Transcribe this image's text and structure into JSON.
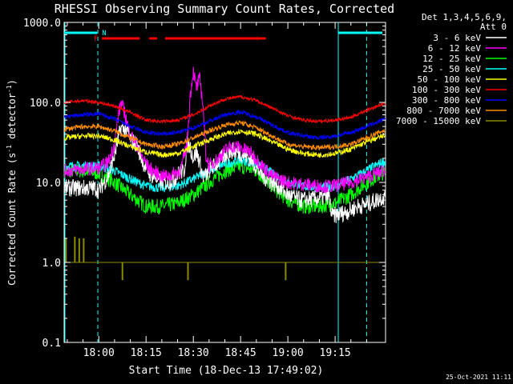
{
  "chart_data": {
    "type": "line",
    "title": "RHESSI Observing Summary Count Rates, Corrected",
    "xlabel": "Start Time (18-Dec-13 17:49:02)",
    "ylabel_main": "Corrected Count Rate (s",
    "ylabel_sup1": "-1",
    "ylabel_mid": " detector",
    "ylabel_sup2": "-1",
    "ylabel_end": ")",
    "yscale": "log",
    "ylim": [
      0.1,
      1000
    ],
    "xlim_min": [
      -11,
      91
    ],
    "x_ticks": [
      {
        "label": "18:00",
        "min": 0
      },
      {
        "label": "18:15",
        "min": 15
      },
      {
        "label": "18:30",
        "min": 30
      },
      {
        "label": "18:45",
        "min": 45
      },
      {
        "label": "19:00",
        "min": 60
      },
      {
        "label": "19:15",
        "min": 75
      }
    ],
    "y_ticks": [
      {
        "label": "1000.0",
        "value": 1000
      },
      {
        "label": "100.0",
        "value": 100
      },
      {
        "label": "10.0",
        "value": 10
      },
      {
        "label": "1.0",
        "value": 1
      },
      {
        "label": "0.1",
        "value": 0.1
      }
    ],
    "legend_title": [
      "Det 1,3,4,5,6,9,",
      "Att 0"
    ],
    "legend_position": "right",
    "series": [
      {
        "name": "3 - 6 keV",
        "color": "#ffffff",
        "x": [
          -11,
          -2,
          -1,
          0,
          3,
          5,
          7,
          9,
          10,
          12,
          14,
          16,
          20,
          22,
          24,
          26,
          27,
          28,
          29,
          30,
          31,
          32,
          33,
          34,
          35,
          38,
          40,
          42,
          44,
          46,
          48,
          52,
          55,
          57,
          60,
          62,
          64,
          68,
          70,
          72,
          73,
          74,
          76,
          78,
          80,
          82,
          84,
          86,
          88,
          90
        ],
        "y": [
          8.5,
          8.5,
          8.5,
          7.9,
          12,
          22,
          48,
          45,
          35,
          30,
          18,
          13,
          10,
          10,
          11,
          14,
          13,
          30,
          28,
          20,
          24,
          18,
          12,
          12,
          14,
          18,
          22,
          25,
          24,
          22,
          20,
          12,
          10,
          9,
          7,
          6.5,
          6,
          6.2,
          6.3,
          6.5,
          7,
          3.8,
          4,
          4.2,
          4.5,
          5,
          5.2,
          5.5,
          6,
          6.5
        ]
      },
      {
        "name": "6 - 12 keV",
        "color": "#ff00ff",
        "x": [
          -11,
          -2,
          0,
          3,
          5,
          6,
          7,
          8,
          9,
          10,
          12,
          14,
          16,
          20,
          22,
          24,
          26,
          28,
          29,
          30,
          31,
          32,
          33,
          34,
          35,
          38,
          40,
          42,
          44,
          46,
          48,
          52,
          55,
          60,
          70,
          74,
          80,
          86,
          90
        ],
        "y": [
          14,
          15,
          15,
          18,
          30,
          60,
          100,
          80,
          55,
          40,
          30,
          20,
          15,
          12,
          12,
          13,
          14,
          30,
          120,
          250,
          150,
          200,
          100,
          22,
          16,
          20,
          25,
          28,
          28,
          26,
          24,
          16,
          12,
          10,
          9,
          9,
          10,
          12,
          14
        ]
      },
      {
        "name": "12 - 25 keV",
        "color": "#00ff00",
        "x": [
          -11,
          -5,
          0,
          5,
          10,
          15,
          20,
          25,
          30,
          35,
          40,
          45,
          50,
          55,
          60,
          65,
          70,
          75,
          80,
          85,
          90
        ],
        "y": [
          14,
          14,
          13,
          10,
          7,
          5,
          5,
          5.5,
          7,
          10,
          14,
          16,
          14,
          9,
          6,
          5,
          5,
          5.5,
          7,
          10,
          13
        ]
      },
      {
        "name": "25 - 50 keV",
        "color": "#00ffff",
        "x": [
          -11,
          -5,
          0,
          5,
          10,
          15,
          20,
          25,
          30,
          35,
          40,
          45,
          50,
          55,
          60,
          65,
          70,
          75,
          80,
          85,
          90
        ],
        "y": [
          16,
          16,
          16,
          14,
          11,
          9,
          8.5,
          9,
          11,
          14,
          17,
          19,
          17,
          13,
          10,
          9,
          8.5,
          9,
          11,
          14,
          18
        ]
      },
      {
        "name": "50 - 100 keV",
        "color": "#ffff00",
        "x": [
          -11,
          -5,
          0,
          5,
          10,
          15,
          20,
          25,
          30,
          35,
          40,
          45,
          50,
          55,
          60,
          65,
          70,
          75,
          80,
          85,
          90
        ],
        "y": [
          36,
          38,
          38,
          34,
          28,
          24,
          22,
          23,
          28,
          34,
          40,
          44,
          40,
          32,
          26,
          23,
          22,
          23,
          26,
          32,
          38
        ]
      },
      {
        "name": "100 - 300 keV",
        "color": "#ff0000",
        "x": [
          -11,
          -5,
          0,
          5,
          10,
          15,
          20,
          25,
          30,
          35,
          40,
          45,
          50,
          55,
          60,
          65,
          70,
          75,
          80,
          85,
          90
        ],
        "y": [
          100,
          105,
          100,
          90,
          75,
          60,
          58,
          60,
          70,
          90,
          110,
          118,
          105,
          85,
          68,
          60,
          58,
          60,
          65,
          80,
          95
        ]
      },
      {
        "name": "300 - 800 keV",
        "color": "#0000ff",
        "x": [
          -11,
          -5,
          0,
          5,
          10,
          15,
          20,
          25,
          30,
          35,
          40,
          45,
          50,
          55,
          60,
          65,
          70,
          75,
          80,
          85,
          90
        ],
        "y": [
          66,
          70,
          72,
          62,
          50,
          42,
          40,
          42,
          48,
          58,
          70,
          76,
          66,
          52,
          42,
          38,
          36,
          38,
          42,
          50,
          60
        ]
      },
      {
        "name": "800 - 7000 keV",
        "color": "#ff8c00",
        "x": [
          -11,
          -5,
          0,
          5,
          10,
          15,
          20,
          25,
          30,
          35,
          40,
          45,
          50,
          55,
          60,
          65,
          70,
          75,
          80,
          85,
          90
        ],
        "y": [
          46,
          50,
          50,
          44,
          36,
          30,
          28,
          30,
          36,
          44,
          52,
          56,
          48,
          38,
          30,
          28,
          27,
          28,
          30,
          36,
          44
        ]
      },
      {
        "name": "7000 - 15000 keV",
        "color": "#8b8b00",
        "x": [
          -11,
          -5,
          0,
          8,
          12,
          18,
          26,
          32,
          40,
          45,
          50,
          58,
          62,
          80,
          86,
          88,
          90
        ],
        "y": [
          1,
          1,
          1,
          1,
          1,
          1,
          1,
          1,
          1,
          1,
          1,
          1,
          1,
          1,
          1,
          1,
          1
        ]
      }
    ],
    "spikes_7000": [
      {
        "min": -10.4,
        "y": 2
      },
      {
        "min": -7.6,
        "y": 2.1
      },
      {
        "min": -6.2,
        "y": 2
      },
      {
        "min": -4.8,
        "y": 2
      },
      {
        "min": 7.5,
        "y": 0.6
      },
      {
        "min": 28.3,
        "y": 0.6
      },
      {
        "min": 59.3,
        "y": 0.6
      }
    ],
    "flag_bars": [
      {
        "flag": "F",
        "color": "#ff0000",
        "segments": [
          [
            1,
            13
          ],
          [
            16,
            18.5
          ],
          [
            21,
            53
          ]
        ]
      },
      {
        "flag": "N",
        "color": "#00ffff",
        "segments": [
          [
            -11,
            -0.5
          ],
          [
            76,
            90
          ]
        ]
      }
    ],
    "night_lines_min": [
      -0.3,
      76,
      85
    ]
  },
  "timestamp": "25-Oct-2021 11:11"
}
